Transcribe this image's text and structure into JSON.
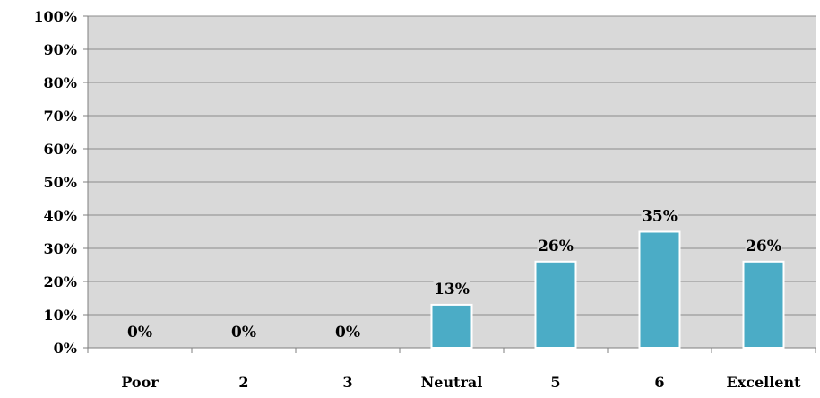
{
  "chart_data": {
    "type": "bar",
    "categories": [
      "Poor",
      "2",
      "3",
      "Neutral",
      "5",
      "6",
      "Excellent"
    ],
    "values": [
      0,
      0,
      0,
      13,
      26,
      35,
      26
    ],
    "data_labels": [
      "0%",
      "0%",
      "0%",
      "13%",
      "26%",
      "35%",
      "26%"
    ],
    "y_ticks": [
      "0%",
      "10%",
      "20%",
      "30%",
      "40%",
      "50%",
      "60%",
      "70%",
      "80%",
      "90%",
      "100%"
    ],
    "title": "",
    "xlabel": "",
    "ylabel": "",
    "ylim": [
      0,
      100
    ],
    "grid": true,
    "legend": "none",
    "colors": {
      "bar_fill": "#4BACC6",
      "bar_stroke": "#FFFFFF",
      "plot_background": "#D9D9D9",
      "gridline": "#8C8C8C",
      "axis": "#7F7F7F"
    }
  }
}
